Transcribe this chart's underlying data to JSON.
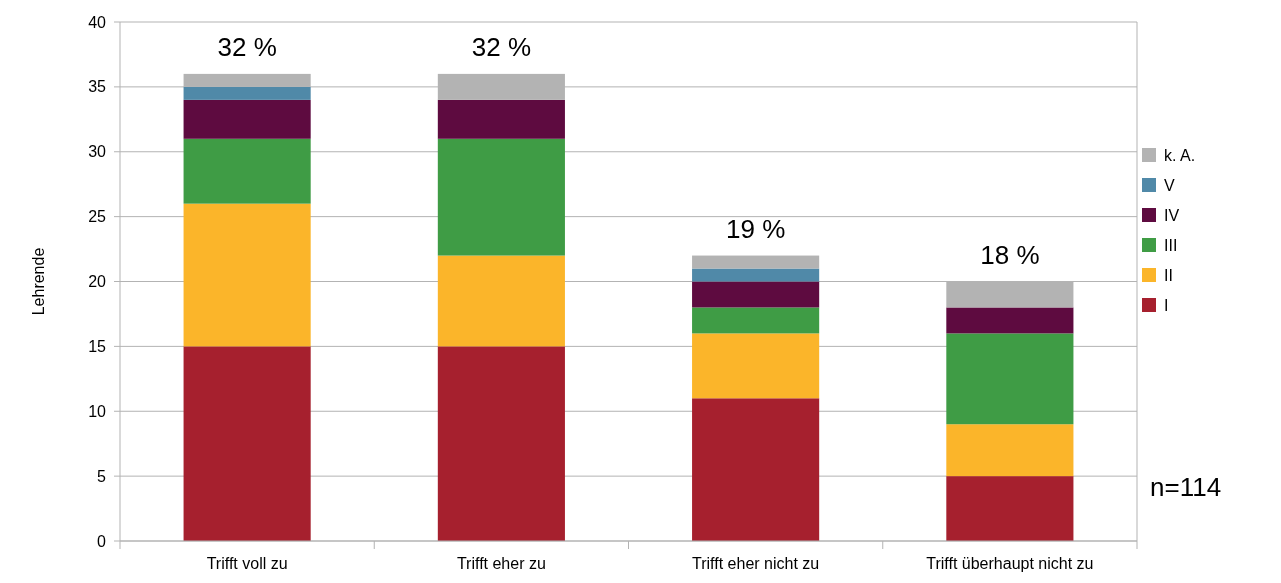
{
  "chart_data": {
    "type": "bar",
    "stacked": true,
    "ylabel": "Lehrende",
    "categories": [
      "Trifft voll zu",
      "Trifft eher zu",
      "Trifft eher nicht zu",
      "Trifft überhaupt nicht zu"
    ],
    "series": [
      {
        "name": "I",
        "color": "#a6202e",
        "values": [
          15,
          15,
          11,
          5
        ]
      },
      {
        "name": "II",
        "color": "#fbb52a",
        "values": [
          11,
          7,
          5,
          4
        ]
      },
      {
        "name": "III",
        "color": "#3f9c45",
        "values": [
          5,
          9,
          2,
          7
        ]
      },
      {
        "name": "IV",
        "color": "#5e0b40",
        "values": [
          3,
          3,
          2,
          2
        ]
      },
      {
        "name": "V",
        "color": "#5089a8",
        "values": [
          1,
          0,
          1,
          0
        ]
      },
      {
        "name": "k. A.",
        "color": "#b3b3b3",
        "values": [
          1,
          2,
          1,
          2
        ]
      }
    ],
    "ylim": [
      0,
      40
    ],
    "yticks": [
      0,
      5,
      10,
      15,
      20,
      25,
      30,
      35,
      40
    ],
    "grid": "y",
    "legend": "right",
    "annotations": [
      {
        "text": "32 %",
        "x": "Trifft voll zu",
        "y": 36
      },
      {
        "text": "32 %",
        "x": "Trifft eher zu",
        "y": 36
      },
      {
        "text": "19 %",
        "x": "Trifft eher nicht zu",
        "y": 22
      },
      {
        "text": "18 %",
        "x": "Trifft überhaupt nicht zu",
        "y": 20
      },
      "n=114"
    ]
  }
}
